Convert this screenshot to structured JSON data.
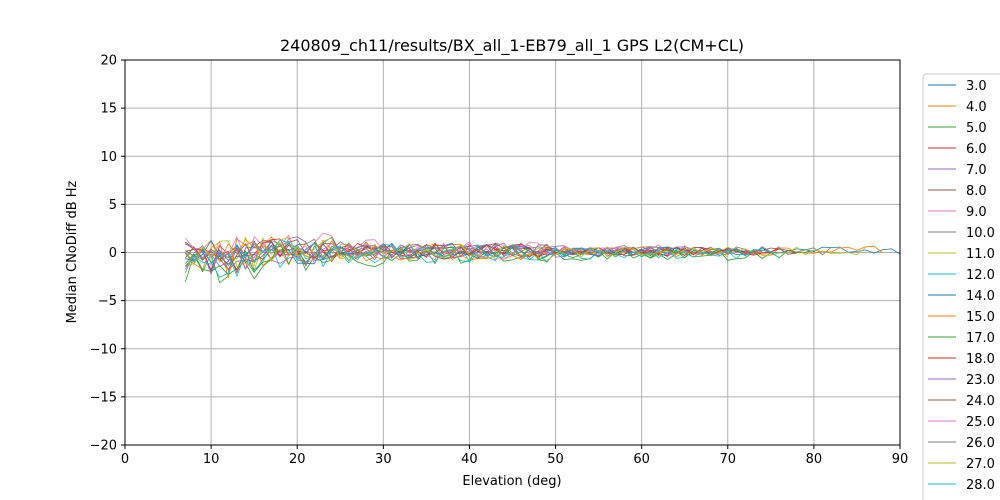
{
  "chart_data": {
    "type": "line",
    "title": "240809_ch11/results/BX_all_1-EB79_all_1 GPS L2(CM+CL)",
    "xlabel": "Elevation (deg)",
    "ylabel": "Median CNoDiff dB Hz",
    "xlim": [
      0,
      90
    ],
    "ylim": [
      -20,
      20
    ],
    "xticks": [
      0,
      10,
      20,
      30,
      40,
      50,
      60,
      70,
      80,
      90
    ],
    "yticks": [
      -20,
      -15,
      -10,
      -5,
      0,
      5,
      10,
      15,
      20
    ],
    "xtick_labels": [
      "0",
      "10",
      "20",
      "30",
      "40",
      "50",
      "60",
      "70",
      "80",
      "90"
    ],
    "ytick_labels": [
      "−20",
      "−15",
      "−10",
      "−5",
      "0",
      "5",
      "10",
      "15",
      "20"
    ],
    "grid": true,
    "legend_position": "right, outside plot",
    "series": [
      {
        "name": "3.0",
        "color": "#1f77b4",
        "start": 7,
        "end": 90,
        "level": 0.3,
        "amp": 0.7,
        "seed": 3
      },
      {
        "name": "4.0",
        "color": "#ff7f0e",
        "start": 7,
        "end": 88,
        "level": 0.4,
        "amp": 0.8,
        "seed": 4
      },
      {
        "name": "5.0",
        "color": "#2ca02c",
        "start": 7,
        "end": 80,
        "level": -0.6,
        "amp": 0.9,
        "seed": 5
      },
      {
        "name": "6.0",
        "color": "#d62728",
        "start": 7,
        "end": 78,
        "level": 0.2,
        "amp": 0.8,
        "seed": 6
      },
      {
        "name": "7.0",
        "color": "#9467bd",
        "start": 7,
        "end": 75,
        "level": 0.5,
        "amp": 0.8,
        "seed": 7
      },
      {
        "name": "8.0",
        "color": "#8c564b",
        "start": 7,
        "end": 78,
        "level": 0.1,
        "amp": 0.8,
        "seed": 8
      },
      {
        "name": "9.0",
        "color": "#e377c2",
        "start": 7,
        "end": 70,
        "level": 0.6,
        "amp": 0.9,
        "seed": 9
      },
      {
        "name": "10.0",
        "color": "#7f7f7f",
        "start": 7,
        "end": 82,
        "level": 0.3,
        "amp": 0.8,
        "seed": 10
      },
      {
        "name": "11.0",
        "color": "#bcbd22",
        "start": 7,
        "end": 86,
        "level": 0.2,
        "amp": 0.9,
        "seed": 11
      },
      {
        "name": "12.0",
        "color": "#17becf",
        "start": 7,
        "end": 72,
        "level": -0.3,
        "amp": 0.9,
        "seed": 12
      },
      {
        "name": "14.0",
        "color": "#1f77b4",
        "start": 7,
        "end": 66,
        "level": 0.2,
        "amp": 0.9,
        "seed": 14
      },
      {
        "name": "15.0",
        "color": "#ff7f0e",
        "start": 7,
        "end": 68,
        "level": 0.0,
        "amp": 0.9,
        "seed": 15
      },
      {
        "name": "17.0",
        "color": "#2ca02c",
        "start": 7,
        "end": 72,
        "level": -0.2,
        "amp": 0.8,
        "seed": 17
      },
      {
        "name": "18.0",
        "color": "#d62728",
        "start": 7,
        "end": 76,
        "level": 0.4,
        "amp": 0.8,
        "seed": 18
      },
      {
        "name": "23.0",
        "color": "#9467bd",
        "start": 7,
        "end": 62,
        "level": 0.1,
        "amp": 0.9,
        "seed": 23
      },
      {
        "name": "24.0",
        "color": "#8c564b",
        "start": 7,
        "end": 64,
        "level": 0.3,
        "amp": 0.8,
        "seed": 24
      },
      {
        "name": "25.0",
        "color": "#e377c2",
        "start": 7,
        "end": 58,
        "level": 0.2,
        "amp": 0.9,
        "seed": 25
      },
      {
        "name": "26.0",
        "color": "#7f7f7f",
        "start": 7,
        "end": 74,
        "level": 0.3,
        "amp": 0.8,
        "seed": 26
      },
      {
        "name": "27.0",
        "color": "#bcbd22",
        "start": 7,
        "end": 70,
        "level": 0.1,
        "amp": 0.9,
        "seed": 27
      },
      {
        "name": "28.0",
        "color": "#17becf",
        "start": 7,
        "end": 76,
        "level": -0.1,
        "amp": 0.9,
        "seed": 28
      }
    ]
  }
}
